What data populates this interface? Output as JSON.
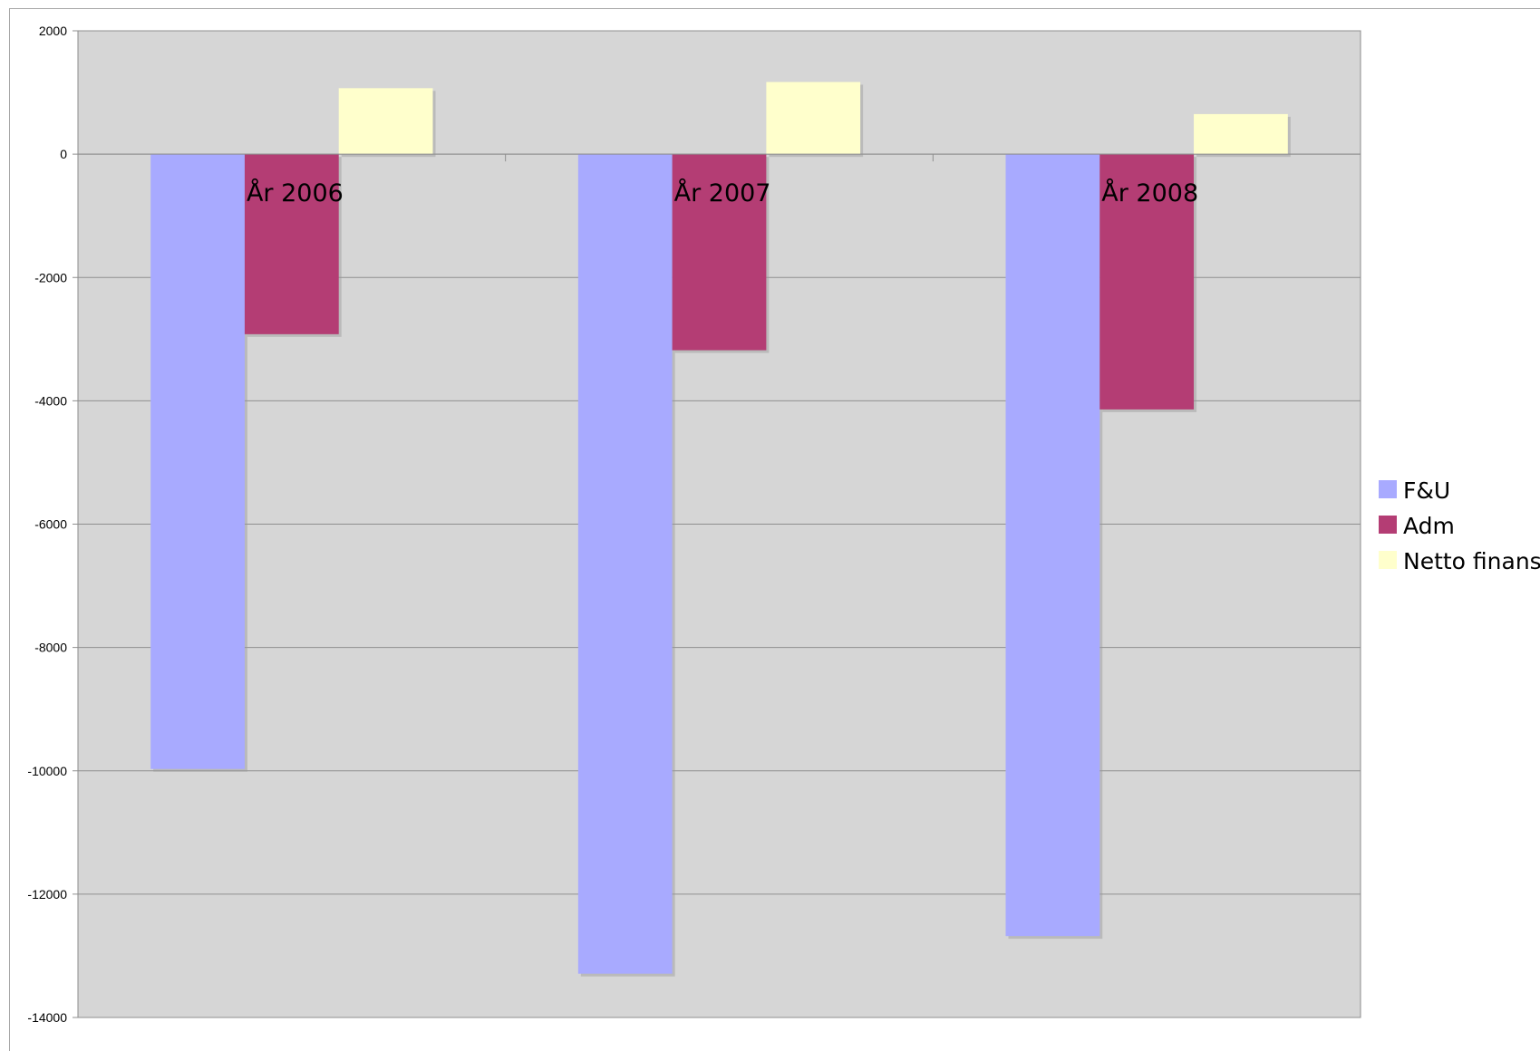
{
  "chart_data": {
    "type": "bar",
    "categories": [
      "År 2006",
      "År 2007",
      "År 2008"
    ],
    "series": [
      {
        "name": "F&U",
        "color": "#a8aaff",
        "values": [
          -9970,
          -13290,
          -12680
        ]
      },
      {
        "name": "Adm",
        "color": "#b43d74",
        "values": [
          -2920,
          -3180,
          -4140
        ]
      },
      {
        "name": "Netto finans",
        "color": "#ffffcc",
        "values": [
          1070,
          1170,
          650
        ]
      }
    ],
    "ylim": [
      -14000,
      2000
    ],
    "ytick_step": 2000,
    "yticks": [
      "2000",
      "0",
      "-2000",
      "-4000",
      "-6000",
      "-8000",
      "-10000",
      "-12000",
      "-14000"
    ],
    "title": "",
    "xlabel": "",
    "ylabel": "",
    "grid": true,
    "legend_position": "right",
    "plot_background": "#d6d6d6"
  }
}
